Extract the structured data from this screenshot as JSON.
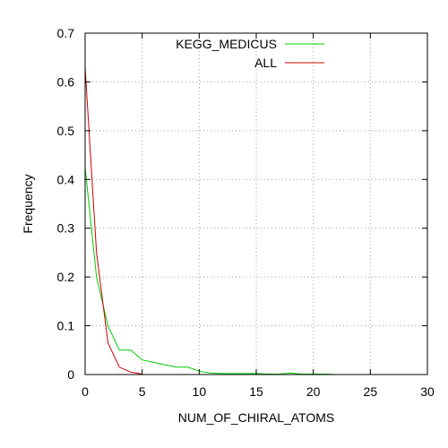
{
  "chart_data": {
    "type": "line",
    "xlabel": "NUM_OF_CHIRAL_ATOMS",
    "ylabel": "Frequency",
    "xlim": [
      0,
      30
    ],
    "ylim": [
      0,
      0.7
    ],
    "x_ticks": [
      0,
      5,
      10,
      15,
      20,
      25,
      30
    ],
    "y_ticks": [
      0,
      0.1,
      0.2,
      0.3,
      0.4,
      0.5,
      0.6,
      0.7
    ],
    "x_tick_labels": [
      "0",
      "5",
      "10",
      "15",
      "20",
      "25",
      "30"
    ],
    "y_tick_labels": [
      "0",
      "0.1",
      "0.2",
      "0.3",
      "0.4",
      "0.5",
      "0.6",
      "0.7"
    ],
    "grid": true,
    "legend_position": "top-right",
    "series": [
      {
        "name": "KEGG_MEDICUS",
        "color": "#00cc00",
        "x": [
          0,
          1,
          2,
          3,
          4,
          5,
          6,
          7,
          8,
          9,
          10,
          11,
          12,
          13,
          14,
          15,
          16,
          17,
          18,
          19,
          20,
          21,
          22
        ],
        "y": [
          0.425,
          0.2,
          0.1,
          0.05,
          0.05,
          0.03,
          0.025,
          0.02,
          0.015,
          0.015,
          0.007,
          0.003,
          0.002,
          0.002,
          0.002,
          0.002,
          0.001,
          0.001,
          0.003,
          0.001,
          0.001,
          0.001,
          0
        ]
      },
      {
        "name": "ALL",
        "color": "#cc0000",
        "x": [
          0,
          1,
          2,
          3,
          4,
          5
        ],
        "y": [
          0.63,
          0.25,
          0.065,
          0.015,
          0.005,
          0.001
        ]
      }
    ]
  }
}
